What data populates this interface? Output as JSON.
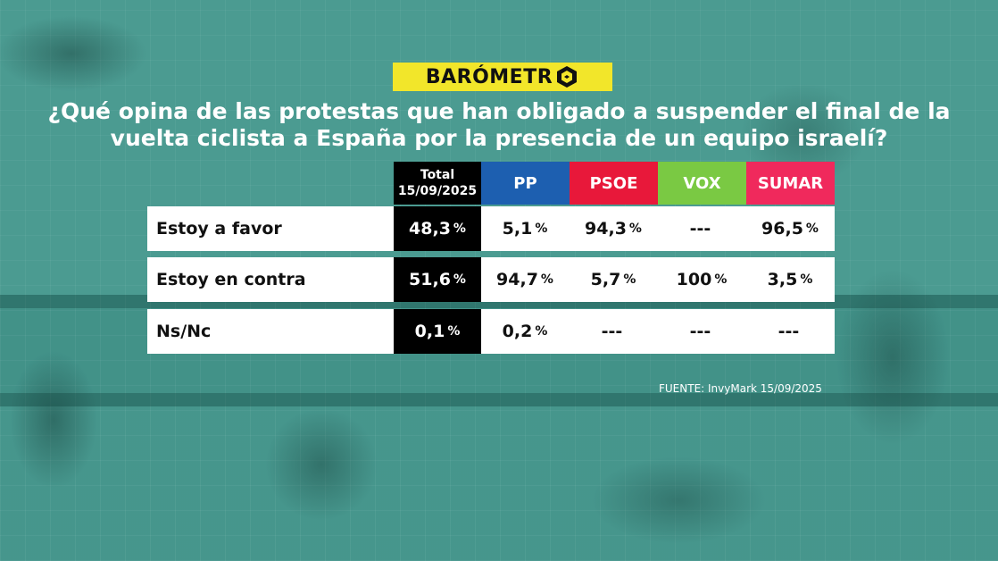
{
  "brand": {
    "logo_text": "BARÓMETR"
  },
  "title": {
    "line1": "¿Qué opina de las protestas que han obligado a suspender el final de la",
    "line2": "vuelta ciclista a España por la presencia de un equipo israelí?"
  },
  "colors": {
    "logo_bg": "#f2e62a",
    "total": "#000000",
    "PP": "#1d5fb0",
    "PSOE": "#e8183a",
    "VOX": "#7ac943",
    "SUMAR": "#f0295c"
  },
  "source": "FUENTE: InvyMark 15/09/2025",
  "chart_data": {
    "type": "table",
    "title": "¿Qué opina de las protestas que han obligado a suspender el final de la vuelta ciclista a España por la presencia de un equipo israelí?",
    "columns": [
      {
        "label_line1": "Total",
        "label_line2": "15/09/2025"
      },
      {
        "label": "PP"
      },
      {
        "label": "PSOE"
      },
      {
        "label": "VOX"
      },
      {
        "label": "SUMAR"
      }
    ],
    "rows": [
      {
        "label": "Estoy a favor",
        "cells": [
          {
            "num": "48,3",
            "pct": "%"
          },
          {
            "num": "5,1",
            "pct": "%"
          },
          {
            "num": "94,3",
            "pct": "%"
          },
          {
            "num": "---",
            "pct": ""
          },
          {
            "num": "96,5",
            "pct": "%"
          }
        ]
      },
      {
        "label": "Estoy en contra",
        "cells": [
          {
            "num": "51,6",
            "pct": "%"
          },
          {
            "num": "94,7",
            "pct": "%"
          },
          {
            "num": "5,7",
            "pct": "%"
          },
          {
            "num": "100",
            "pct": "%"
          },
          {
            "num": "3,5",
            "pct": "%"
          }
        ]
      },
      {
        "label": "Ns/Nc",
        "cells": [
          {
            "num": "0,1",
            "pct": "%"
          },
          {
            "num": "0,2",
            "pct": "%"
          },
          {
            "num": "---",
            "pct": ""
          },
          {
            "num": "---",
            "pct": ""
          },
          {
            "num": "---",
            "pct": ""
          }
        ]
      }
    ]
  }
}
